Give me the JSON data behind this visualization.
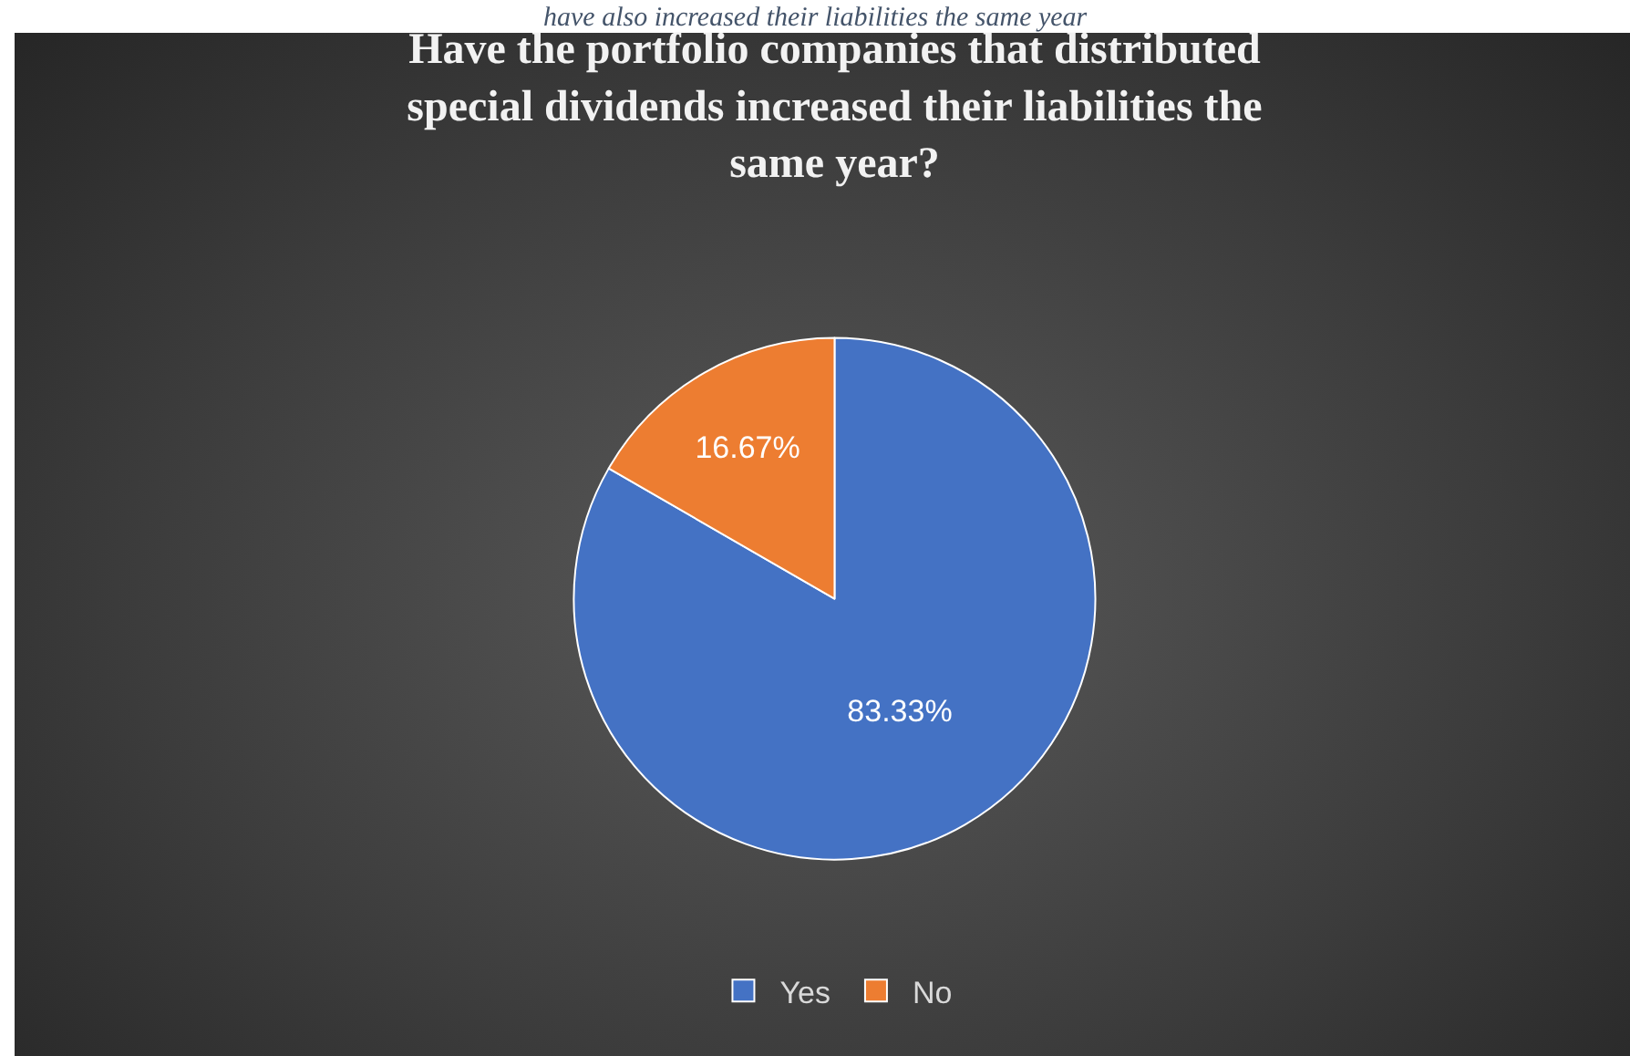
{
  "chart_data": {
    "type": "pie",
    "title": "Have the portfolio companies that distributed special dividends increased their liabilities the same year?",
    "categories": [
      "Yes",
      "No"
    ],
    "values": [
      83.33,
      16.67
    ],
    "value_labels": [
      "83.33%",
      "16.67%"
    ],
    "colors": [
      "#4472c4",
      "#ed7d31"
    ],
    "legend": "bottom",
    "annotations": [
      "have also increased their liabilities the same year"
    ]
  }
}
